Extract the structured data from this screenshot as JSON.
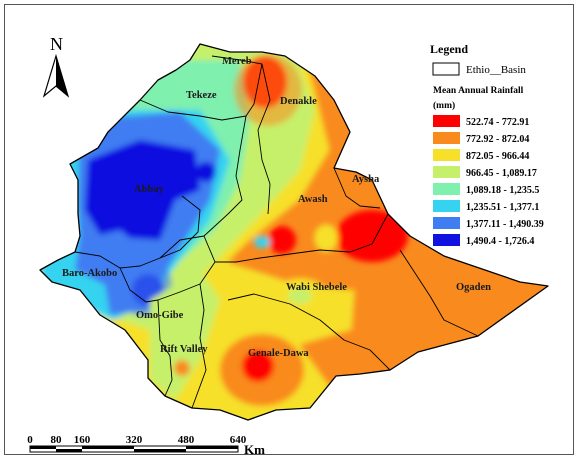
{
  "legend": {
    "title": "Legend",
    "basin_label": "Ethio__Basin",
    "rainfall_title_line1": "Mean Annual Rainfall",
    "rainfall_title_line2": "(mm)",
    "classes": [
      {
        "label": "522.74 - 772.91",
        "color": "#ff0000"
      },
      {
        "label": "772.92 - 872.04",
        "color": "#f98a1e"
      },
      {
        "label": "872.05 - 966.44",
        "color": "#f6e02a"
      },
      {
        "label": "966.45 - 1,089.17",
        "color": "#c6f06a"
      },
      {
        "label": "1,089.18 - 1,235.5",
        "color": "#7ff0ae"
      },
      {
        "label": "1,235.51 - 1,377.1",
        "color": "#36d3f0"
      },
      {
        "label": "1,377.11 - 1,490.39",
        "color": "#3f7df2"
      },
      {
        "label": "1,490.4 - 1,726.4",
        "color": "#1111e0"
      }
    ]
  },
  "north_arrow": {
    "letter": "N"
  },
  "basins": {
    "mereb": "Mereb",
    "tekeze": "Tekeze",
    "denakle": "Denakle",
    "abbay": "Abbay",
    "aysha": "Aysha",
    "awash": "Awash",
    "baro_akobo": "Baro-Akobo",
    "wabi_shebele": "Wabi Shebele",
    "ogaden": "Ogaden",
    "omo_gibe": "Omo-Gibe",
    "rift_valley": "Rift Valley",
    "genale_dawa": "Genale-Dawa"
  },
  "scale_bar": {
    "ticks": [
      "0",
      "80",
      "160",
      "320",
      "480",
      "640"
    ],
    "unit": "Km"
  },
  "colors": {
    "border": "#000000",
    "background": "#ffffff"
  }
}
